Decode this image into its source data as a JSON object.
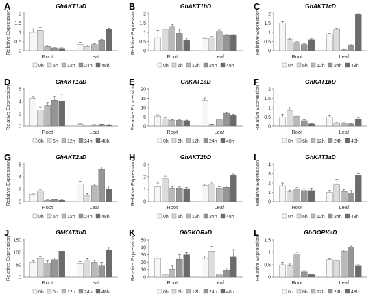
{
  "legend_labels": [
    "0h",
    "6h",
    "12h",
    "24h",
    "48h"
  ],
  "series_colors": [
    "#f6f6f6",
    "#dcdcdc",
    "#b9b9b9",
    "#959595",
    "#6b6b6b"
  ],
  "chart_data": [
    {
      "letter": "A",
      "type": "bar",
      "title": "GhAKT1aD",
      "ylabel": "Relative Expression",
      "categories": [
        "Root",
        "Leaf"
      ],
      "ylim": [
        0,
        2
      ],
      "yticks": [
        "0",
        "0.5",
        "1",
        "1.5",
        "2"
      ],
      "series": [
        {
          "name": "0h",
          "values": [
            1.0,
            0.35
          ]
        },
        {
          "name": "6h",
          "values": [
            1.1,
            0.25
          ]
        },
        {
          "name": "12h",
          "values": [
            0.25,
            0.35
          ]
        },
        {
          "name": "24h",
          "values": [
            0.15,
            0.55
          ]
        },
        {
          "name": "48h",
          "values": [
            0.12,
            1.15
          ]
        }
      ],
      "errors": [
        [
          0.18,
          0.12
        ],
        [
          0.15,
          0.06
        ],
        [
          0.05,
          0.05
        ],
        [
          0.04,
          0.06
        ],
        [
          0.03,
          0.06
        ]
      ]
    },
    {
      "letter": "B",
      "type": "bar",
      "title": "GhAKT1bD",
      "ylabel": "Relative Expression",
      "categories": [
        "Root",
        "Leaf"
      ],
      "ylim": [
        0,
        2
      ],
      "yticks": [
        "0",
        "0.5",
        "1",
        "1.5",
        "2"
      ],
      "series": [
        {
          "name": "0h",
          "values": [
            0.7,
            0.65
          ]
        },
        {
          "name": "6h",
          "values": [
            1.15,
            0.7
          ]
        },
        {
          "name": "12h",
          "values": [
            1.3,
            1.05
          ]
        },
        {
          "name": "24h",
          "values": [
            0.95,
            0.85
          ]
        },
        {
          "name": "48h",
          "values": [
            0.55,
            0.85
          ]
        }
      ],
      "errors": [
        [
          0.4,
          0.05
        ],
        [
          0.35,
          0.05
        ],
        [
          0.12,
          0.06
        ],
        [
          0.2,
          0.05
        ],
        [
          0.12,
          0.05
        ]
      ]
    },
    {
      "letter": "C",
      "type": "bar",
      "title": "GhAKT1cD",
      "ylabel": "Relative Expression",
      "categories": [
        "Root",
        "Leaf"
      ],
      "ylim": [
        0,
        2
      ],
      "yticks": [
        "0",
        "0.5",
        "1",
        "1.5",
        "2"
      ],
      "series": [
        {
          "name": "0h",
          "values": [
            1.5,
            0.9
          ]
        },
        {
          "name": "6h",
          "values": [
            0.6,
            1.15
          ]
        },
        {
          "name": "12h",
          "values": [
            0.45,
            0.05
          ]
        },
        {
          "name": "24h",
          "values": [
            0.35,
            0.3
          ]
        },
        {
          "name": "48h",
          "values": [
            0.6,
            1.95
          ]
        }
      ],
      "errors": [
        [
          0.08,
          0.04
        ],
        [
          0.04,
          0.06
        ],
        [
          0.04,
          0.02
        ],
        [
          0.03,
          0.04
        ],
        [
          0.04,
          0.05
        ]
      ]
    },
    {
      "letter": "D",
      "type": "bar",
      "title": "GhAKT1dD",
      "ylabel": "Relative Expression",
      "categories": [
        "Root",
        "Leaf"
      ],
      "ylim": [
        0,
        6
      ],
      "yticks": [
        "0",
        "2",
        "4",
        "6"
      ],
      "series": [
        {
          "name": "0h",
          "values": [
            4.5,
            0.3
          ]
        },
        {
          "name": "6h",
          "values": [
            2.6,
            0.15
          ]
        },
        {
          "name": "12h",
          "values": [
            3.4,
            0.2
          ]
        },
        {
          "name": "24h",
          "values": [
            4.2,
            0.25
          ]
        },
        {
          "name": "48h",
          "values": [
            4.1,
            0.2
          ]
        }
      ],
      "errors": [
        [
          0.3,
          0.05
        ],
        [
          0.5,
          0.04
        ],
        [
          0.4,
          0.04
        ],
        [
          0.6,
          0.05
        ],
        [
          1.0,
          0.04
        ]
      ]
    },
    {
      "letter": "E",
      "type": "bar",
      "title": "GhKAT1aD",
      "ylabel": "Relative Expression",
      "categories": [
        "Root",
        "Leaf"
      ],
      "ylim": [
        0,
        20
      ],
      "yticks": [
        "0",
        "5",
        "10",
        "15",
        "20"
      ],
      "series": [
        {
          "name": "0h",
          "values": [
            5.5,
            14.0
          ]
        },
        {
          "name": "6h",
          "values": [
            4.0,
            0.8
          ]
        },
        {
          "name": "12h",
          "values": [
            3.3,
            3.5
          ]
        },
        {
          "name": "24h",
          "values": [
            3.3,
            7.0
          ]
        },
        {
          "name": "48h",
          "values": [
            3.0,
            5.8
          ]
        }
      ],
      "errors": [
        [
          0.4,
          1.2
        ],
        [
          0.5,
          0.2
        ],
        [
          0.3,
          0.3
        ],
        [
          0.4,
          0.4
        ],
        [
          0.3,
          0.4
        ]
      ]
    },
    {
      "letter": "F",
      "type": "bar",
      "title": "GhKAT1bD",
      "ylabel": "Relative Expression",
      "categories": [
        "Root",
        "Leaf"
      ],
      "ylim": [
        0,
        2
      ],
      "yticks": [
        "0",
        "0.5",
        "1",
        "1.5",
        "2"
      ],
      "series": [
        {
          "name": "0h",
          "values": [
            0.5,
            0.5
          ]
        },
        {
          "name": "6h",
          "values": [
            0.85,
            0.15
          ]
        },
        {
          "name": "12h",
          "values": [
            0.55,
            0.15
          ]
        },
        {
          "name": "24h",
          "values": [
            0.3,
            0.12
          ]
        },
        {
          "name": "48h",
          "values": [
            0.12,
            0.4
          ]
        }
      ],
      "errors": [
        [
          0.12,
          0.08
        ],
        [
          0.15,
          0.04
        ],
        [
          0.1,
          0.04
        ],
        [
          0.05,
          0.03
        ],
        [
          0.03,
          0.05
        ]
      ]
    },
    {
      "letter": "G",
      "type": "bar",
      "title": "GhAKT2aD",
      "ylabel": "Relative Expression",
      "categories": [
        "Root",
        "Leaf"
      ],
      "ylim": [
        0,
        6
      ],
      "yticks": [
        "0",
        "2",
        "4",
        "6"
      ],
      "series": [
        {
          "name": "0h",
          "values": [
            1.2,
            2.8
          ]
        },
        {
          "name": "6h",
          "values": [
            1.7,
            1.0
          ]
        },
        {
          "name": "12h",
          "values": [
            0.2,
            2.6
          ]
        },
        {
          "name": "24h",
          "values": [
            0.3,
            5.2
          ]
        },
        {
          "name": "48h",
          "values": [
            0.2,
            2.0
          ]
        }
      ],
      "errors": [
        [
          0.15,
          0.5
        ],
        [
          0.2,
          0.3
        ],
        [
          0.05,
          0.2
        ],
        [
          0.05,
          0.4
        ],
        [
          0.04,
          0.5
        ]
      ]
    },
    {
      "letter": "H",
      "type": "bar",
      "title": "GhAKT2bD",
      "ylabel": "Relative Expression",
      "categories": [
        "Root",
        "Leaf"
      ],
      "ylim": [
        0,
        3
      ],
      "yticks": [
        "0",
        "1",
        "2",
        "3"
      ],
      "series": [
        {
          "name": "0h",
          "values": [
            1.2,
            1.3
          ]
        },
        {
          "name": "6h",
          "values": [
            1.85,
            1.4
          ]
        },
        {
          "name": "12h",
          "values": [
            1.1,
            1.1
          ]
        },
        {
          "name": "24h",
          "values": [
            1.1,
            1.15
          ]
        },
        {
          "name": "48h",
          "values": [
            1.05,
            2.1
          ]
        }
      ],
      "errors": [
        [
          0.3,
          0.1
        ],
        [
          0.2,
          0.1
        ],
        [
          0.1,
          0.1
        ],
        [
          0.08,
          0.1
        ],
        [
          0.1,
          0.12
        ]
      ]
    },
    {
      "letter": "I",
      "type": "bar",
      "title": "GhKAT3aD",
      "ylabel": "Relative Expression",
      "categories": [
        "Root",
        "Leaf"
      ],
      "ylim": [
        0,
        4
      ],
      "yticks": [
        "0",
        "1",
        "2",
        "3",
        "4"
      ],
      "series": [
        {
          "name": "0h",
          "values": [
            1.7,
            1.0
          ]
        },
        {
          "name": "6h",
          "values": [
            1.05,
            1.8
          ]
        },
        {
          "name": "12h",
          "values": [
            1.3,
            1.1
          ]
        },
        {
          "name": "24h",
          "values": [
            1.2,
            0.9
          ]
        },
        {
          "name": "48h",
          "values": [
            1.2,
            2.8
          ]
        }
      ],
      "errors": [
        [
          0.3,
          0.2
        ],
        [
          0.2,
          0.6
        ],
        [
          0.2,
          0.2
        ],
        [
          0.2,
          0.3
        ],
        [
          0.25,
          0.2
        ]
      ]
    },
    {
      "letter": "J",
      "type": "bar",
      "title": "GhKAT3bD",
      "ylabel": "Relative Expression",
      "categories": [
        "Root",
        "Leaf"
      ],
      "ylim": [
        0,
        150
      ],
      "yticks": [
        "0",
        "50",
        "100",
        "150"
      ],
      "series": [
        {
          "name": "0h",
          "values": [
            60,
            55
          ]
        },
        {
          "name": "6h",
          "values": [
            75,
            68
          ]
        },
        {
          "name": "12h",
          "values": [
            58,
            60
          ]
        },
        {
          "name": "24h",
          "values": [
            70,
            45
          ]
        },
        {
          "name": "48h",
          "values": [
            105,
            110
          ]
        }
      ],
      "errors": [
        [
          6,
          8
        ],
        [
          6,
          6
        ],
        [
          7,
          7
        ],
        [
          6,
          15
        ],
        [
          5,
          10
        ]
      ]
    },
    {
      "letter": "K",
      "type": "bar",
      "title": "GhSKORaD",
      "ylabel": "Relative Expression",
      "categories": [
        "Root",
        "Leaf"
      ],
      "ylim": [
        0,
        50
      ],
      "yticks": [
        "0",
        "10",
        "20",
        "30",
        "40",
        "50"
      ],
      "series": [
        {
          "name": "0h",
          "values": [
            25,
            25
          ]
        },
        {
          "name": "6h",
          "values": [
            3,
            35
          ]
        },
        {
          "name": "12h",
          "values": [
            10,
            3
          ]
        },
        {
          "name": "24h",
          "values": [
            24,
            9
          ]
        },
        {
          "name": "48h",
          "values": [
            30,
            27
          ]
        }
      ],
      "errors": [
        [
          3,
          3
        ],
        [
          1,
          6
        ],
        [
          5,
          1
        ],
        [
          6,
          2
        ],
        [
          3,
          10
        ]
      ]
    },
    {
      "letter": "L",
      "type": "bar",
      "title": "GhGORKaD",
      "ylabel": "Relative Expression",
      "categories": [
        "Root",
        "Leaf"
      ],
      "ylim": [
        0,
        1.5
      ],
      "yticks": [
        "0",
        "0.5",
        "1",
        "1.5"
      ],
      "series": [
        {
          "name": "0h",
          "values": [
            0.5,
            0.7
          ]
        },
        {
          "name": "6h",
          "values": [
            0.45,
            0.65
          ]
        },
        {
          "name": "12h",
          "values": [
            0.9,
            1.05
          ]
        },
        {
          "name": "24h",
          "values": [
            0.2,
            1.2
          ]
        },
        {
          "name": "48h",
          "values": [
            0.1,
            0.45
          ]
        }
      ],
      "errors": [
        [
          0.1,
          0.03
        ],
        [
          0.08,
          0.03
        ],
        [
          0.1,
          0.04
        ],
        [
          0.05,
          0.05
        ],
        [
          0.02,
          0.05
        ]
      ]
    }
  ]
}
